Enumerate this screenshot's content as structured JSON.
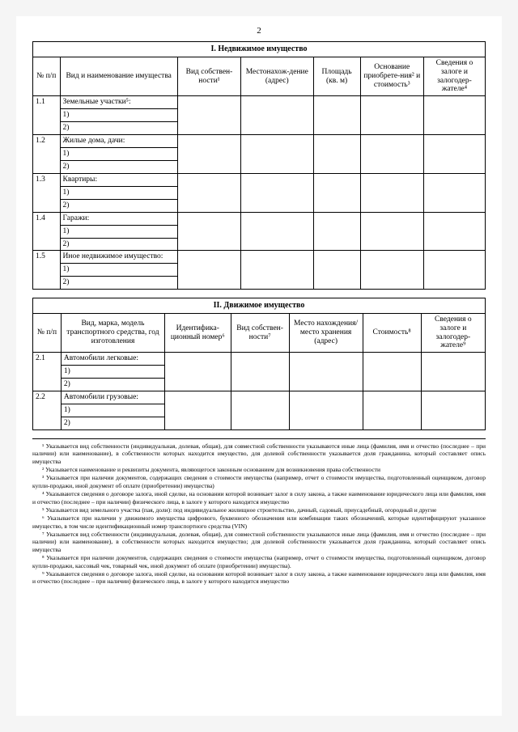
{
  "pageNumber": "2",
  "table1": {
    "title": "I. Недвижимое имущество",
    "colWidths": [
      "30px",
      "130px",
      "70px",
      "80px",
      "52px",
      "70px",
      "68px"
    ],
    "headers": {
      "c1": "№ п/п",
      "c2": "Вид и наименование имущества",
      "c3": "Вид собствен-ности¹",
      "c4": "Местонахож-дение (адрес)",
      "c5": "Площадь (кв. м)",
      "c6": "Основание приобрете-ния² и стоимость³",
      "c7": "Сведения о залоге и залогодер-жателе⁴"
    },
    "rows": [
      {
        "n": "1.1",
        "label": "Земельные участки⁵:",
        "subs": [
          "1)",
          "2)"
        ]
      },
      {
        "n": "1.2",
        "label": "Жилые дома, дачи:",
        "subs": [
          "1)",
          "2)"
        ]
      },
      {
        "n": "1.3",
        "label": "Квартиры:",
        "subs": [
          "1)",
          "2)"
        ]
      },
      {
        "n": "1.4",
        "label": "Гаражи:",
        "subs": [
          "1)",
          "2)"
        ]
      },
      {
        "n": "1.5",
        "label": "Иное недвижимое имущество:",
        "subs": [
          "1)",
          "2)"
        ]
      }
    ]
  },
  "table2": {
    "title": "II. Движимое имущество",
    "colWidths": [
      "30px",
      "110px",
      "70px",
      "62px",
      "78px",
      "62px",
      "68px"
    ],
    "headers": {
      "c1": "№ п/п",
      "c2": "Вид, марка, модель транспортного средства, год изготовления",
      "c3": "Идентифика-ционный номер⁶",
      "c4": "Вид собствен-ности⁷",
      "c5": "Место нахождения/место хранения (адрес)",
      "c6": "Стоимость⁸",
      "c7": "Сведения о залоге и залогодер-жателе⁹"
    },
    "rows": [
      {
        "n": "2.1",
        "label": "Автомобили легковые:",
        "subs": [
          "1)",
          "2)"
        ]
      },
      {
        "n": "2.2",
        "label": "Автомобили грузовые:",
        "subs": [
          "1)",
          "2)"
        ]
      }
    ]
  },
  "footnotes": [
    "¹ Указывается вид собственности (индивидуальная, долевая, общая), для совместной собственности указываются иные лица (фамилия, имя и отчество (последнее – при наличии) или наименование), в собственности которых находится имущество, для долевой собственности указывается доля гражданина, который составляет опись имущества",
    "² Указывается наименование и реквизиты документа, являющегося законным основанием для возникновения права собственности",
    "³ Указывается при наличии документов, содержащих сведения о стоимости имущества (например, отчет о стоимости имущества, подготовленный оценщиком, договор купли-продажи, иной документ об оплате (приобретении) имущества)",
    "⁴ Указываются сведения о договоре залога, иной сделке, на основании которой возникает залог в силу закона, а также наименование юридического лица или фамилия, имя и отчество (последнее – при наличии) физического лица, в залоге у которого находится имущество",
    "⁵ Указывается вид земельного участка (пая, доли): под индивидуальное жилищное строительство, дачный, садовый, приусадебный, огородный и другие",
    "⁶ Указывается при наличии у движимого имущества цифрового, буквенного обозначения или комбинации таких обозначений, которые идентифицируют указанное имущество, в том числе идентификационный номер транспортного средства (VIN)",
    "⁷ Указывается вид собственности (индивидуальная, долевая, общая), для совместной собственности указываются иные лица (фамилия, имя и отчество (последнее – при наличии) или наименование), в собственности которых находится имущество; для долевой собственности указывается доля гражданина, который составляет опись имущества",
    "⁸ Указывается при наличии документов, содержащих сведения о стоимости имущества (например, отчет о стоимости имущества, подготовленный оценщиком, договор купли-продажи, кассовый чек, товарный чек, иной документ об оплате (приобретении) имущества).",
    "⁹ Указываются сведения о договоре залога, иной сделке, на основании которой возникает залог в силу закона, а также наименование юридического лица или фамилия, имя и отчество (последнее – при наличии) физического лица, в залоге у которого находится имущество"
  ]
}
